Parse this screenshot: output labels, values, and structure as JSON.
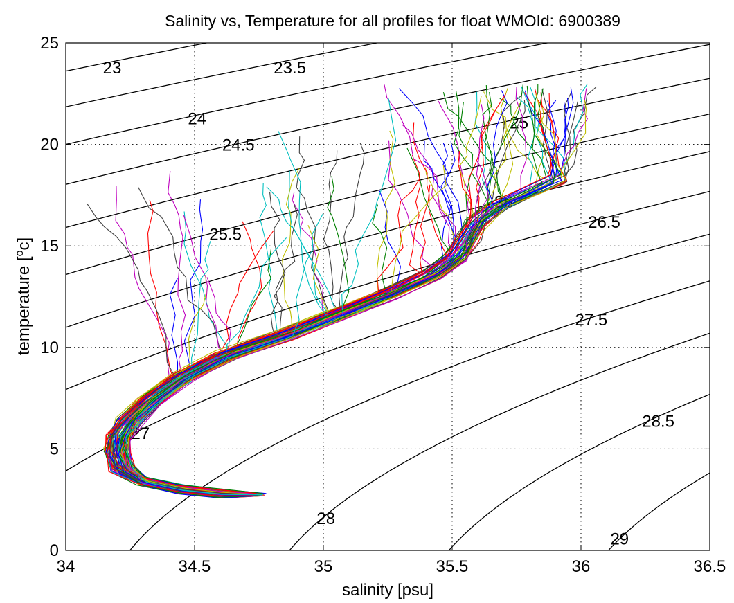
{
  "chart_data": {
    "type": "line",
    "title": "Salinity vs, Temperature for all profiles for float WMOId: 6900389",
    "xlabel": "salinity [psu]",
    "ylabel_main": "temperature [",
    "ylabel_sup": "o",
    "ylabel_end": "c]",
    "xlim": [
      34,
      36.5
    ],
    "ylim": [
      0,
      25
    ],
    "xticks": [
      34,
      34.5,
      35,
      35.5,
      36,
      36.5
    ],
    "xtick_labels": [
      "34",
      "34.5",
      "35",
      "35.5",
      "36",
      "36.5"
    ],
    "yticks": [
      0,
      5,
      10,
      15,
      20,
      25
    ],
    "ytick_labels": [
      "0",
      "5",
      "10",
      "15",
      "20",
      "25"
    ],
    "grid": true,
    "density_contours": {
      "levels": [
        23,
        23.5,
        24,
        24.5,
        25,
        25.5,
        26,
        26.5,
        27,
        27.5,
        28,
        28.5,
        29
      ],
      "labels": [
        {
          "text": "23",
          "s": 34.18,
          "t": 23.8
        },
        {
          "text": "23.5",
          "s": 34.87,
          "t": 23.8
        },
        {
          "text": "24",
          "s": 34.51,
          "t": 21.3
        },
        {
          "text": "24.5",
          "s": 34.67,
          "t": 20.0
        },
        {
          "text": "25",
          "s": 35.76,
          "t": 21.1
        },
        {
          "text": "25.5",
          "s": 34.62,
          "t": 15.6
        },
        {
          "text": "26",
          "s": 35.7,
          "t": 17.2
        },
        {
          "text": "26.5",
          "s": 36.09,
          "t": 16.2
        },
        {
          "text": "27",
          "s": 34.29,
          "t": 5.8
        },
        {
          "text": "27.5",
          "s": 36.04,
          "t": 11.4
        },
        {
          "text": "28",
          "s": 35.01,
          "t": 1.6
        },
        {
          "text": "28.5",
          "s": 36.3,
          "t": 6.4
        },
        {
          "text": "29",
          "s": 36.15,
          "t": 0.6
        }
      ]
    },
    "mean_profile": {
      "s": [
        34.75,
        34.6,
        34.45,
        34.3,
        34.22,
        34.2,
        34.21,
        34.25,
        34.33,
        34.45,
        34.62,
        34.85,
        35.05,
        35.25,
        35.42,
        35.52,
        35.56,
        35.6,
        35.68,
        35.8,
        35.9
      ],
      "t": [
        2.75,
        2.8,
        3.0,
        3.4,
        4.0,
        4.8,
        5.6,
        6.4,
        7.4,
        8.5,
        9.6,
        10.6,
        11.6,
        12.6,
        13.6,
        14.5,
        15.4,
        16.2,
        17.0,
        17.7,
        18.3
      ]
    },
    "series_colors": [
      "#0000ff",
      "#008000",
      "#ff0000",
      "#00bfbf",
      "#bf00bf",
      "#bfbf00",
      "#404040"
    ]
  }
}
